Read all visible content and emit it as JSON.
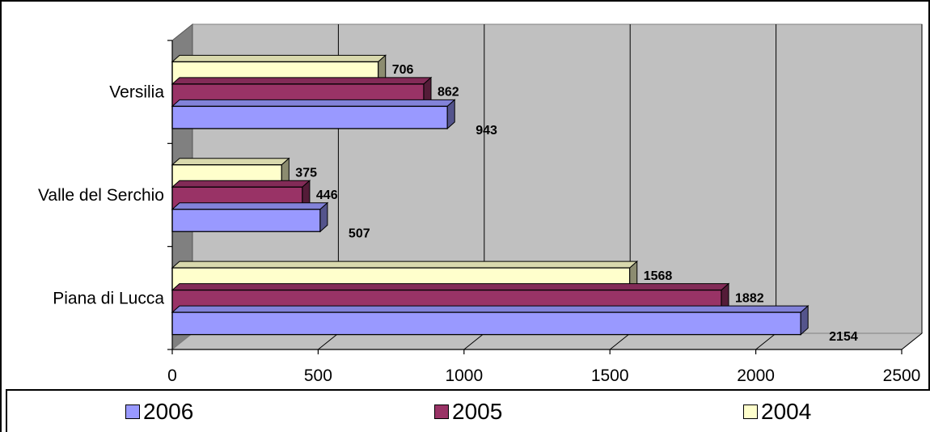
{
  "chart_data": {
    "type": "bar",
    "orientation": "horizontal",
    "three_d": true,
    "categories": [
      "Piana di Lucca",
      "Valle del Serchio",
      "Versilia"
    ],
    "series": [
      {
        "name": "2006",
        "values": [
          2154,
          507,
          943
        ],
        "color": "#9999ff"
      },
      {
        "name": "2005",
        "values": [
          1882,
          446,
          862
        ],
        "color": "#993366"
      },
      {
        "name": "2004",
        "values": [
          1568,
          375,
          706
        ],
        "color": "#ffffcc"
      }
    ],
    "x_ticks": [
      "0",
      "500",
      "1000",
      "1500",
      "2000",
      "2500"
    ],
    "xlim": [
      0,
      2500
    ],
    "grid": true,
    "legend_position": "bottom",
    "colors": {
      "plot_wall": "#c0c0c0",
      "side_wall": "#808080",
      "floor": "#c0c0c0"
    }
  }
}
